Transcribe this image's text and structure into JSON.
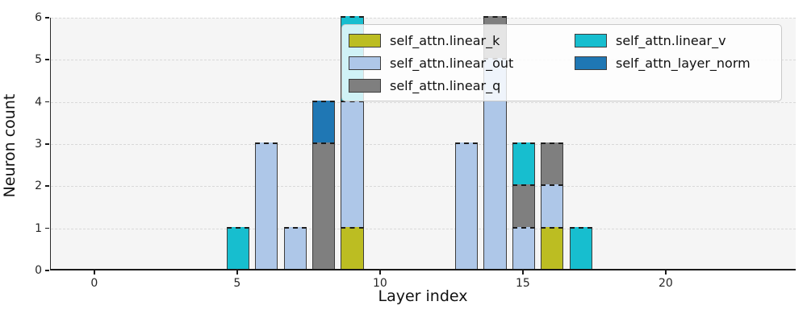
{
  "figure": {
    "background": "#ffffff",
    "plot_background": "#f5f5f5",
    "grid_color": "#d9d9d9",
    "bar_edge_color": "#3d3d3d"
  },
  "chart_data": {
    "type": "bar",
    "stacked": true,
    "title": "",
    "xlabel": "Layer index",
    "ylabel": "Neuron count",
    "xlim": [
      -1.55,
      24.55
    ],
    "ylim": [
      0,
      6
    ],
    "xticks": [
      0,
      5,
      10,
      15,
      20
    ],
    "yticks": [
      0,
      1,
      2,
      3,
      4,
      5,
      6
    ],
    "bar_width": 0.8,
    "grid": "horizontal-dashed",
    "legend_position": "upper right",
    "legend_columns": 2,
    "series": [
      {
        "name": "self_attn.linear_k",
        "color": "#bcbd22",
        "x": [
          9,
          16
        ],
        "values": [
          1,
          1
        ]
      },
      {
        "name": "self_attn.linear_out",
        "color": "#aec7e8",
        "x": [
          6,
          7,
          9,
          13,
          14,
          15,
          16
        ],
        "values": [
          3,
          1,
          3,
          3,
          5,
          1,
          1
        ]
      },
      {
        "name": "self_attn.linear_q",
        "color": "#7f7f7f",
        "x": [
          8,
          14,
          15,
          16
        ],
        "values": [
          3,
          1,
          1,
          1
        ]
      },
      {
        "name": "self_attn.linear_v",
        "color": "#17becf",
        "x": [
          5,
          9,
          15,
          17
        ],
        "values": [
          1,
          2,
          1,
          1
        ]
      },
      {
        "name": "self_attn_layer_norm",
        "color": "#1f77b4",
        "x": [
          8
        ],
        "values": [
          1
        ]
      }
    ]
  }
}
